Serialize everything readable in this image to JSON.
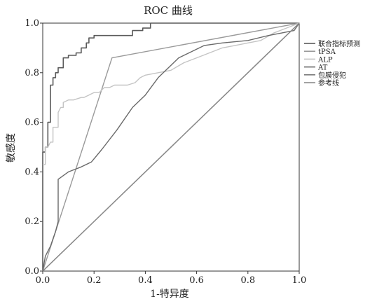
{
  "chart_data": {
    "type": "line",
    "title": "ROC 曲线",
    "xlabel": "1-特异度",
    "ylabel": "敏感度",
    "xlim": [
      0,
      1
    ],
    "ylim": [
      0,
      1
    ],
    "x_ticks": [
      "0.0",
      "0.2",
      "0.4",
      "0.6",
      "0.8",
      "1.0"
    ],
    "y_ticks": [
      "0.0",
      "0.2",
      "0.4",
      "0.6",
      "0.8",
      "1.0"
    ],
    "x_tick_values": [
      0,
      0.2,
      0.4,
      0.6,
      0.8,
      1.0
    ],
    "y_tick_values": [
      0,
      0.2,
      0.4,
      0.6,
      0.8,
      1.0
    ],
    "grid": false,
    "legend_position": "right",
    "series": [
      {
        "name": "联合指标预测",
        "color": "#5a5a5a",
        "x": [
          0,
          0,
          0.01,
          0.01,
          0.02,
          0.02,
          0.03,
          0.03,
          0.04,
          0.04,
          0.05,
          0.05,
          0.06,
          0.06,
          0.08,
          0.08,
          0.1,
          0.1,
          0.13,
          0.13,
          0.15,
          0.15,
          0.17,
          0.17,
          0.18,
          0.18,
          0.2,
          0.2,
          0.35,
          0.35,
          0.39,
          0.39,
          0.42,
          0.42,
          0.67,
          0.67,
          1.0
        ],
        "y": [
          0,
          0.48,
          0.48,
          0.5,
          0.5,
          0.6,
          0.6,
          0.75,
          0.75,
          0.78,
          0.78,
          0.8,
          0.8,
          0.82,
          0.82,
          0.86,
          0.86,
          0.87,
          0.87,
          0.88,
          0.88,
          0.9,
          0.9,
          0.92,
          0.92,
          0.94,
          0.94,
          0.95,
          0.95,
          0.97,
          0.97,
          0.98,
          0.98,
          1.0,
          1.0,
          1.0,
          1.0
        ]
      },
      {
        "name": "tPSA",
        "color": "#9a9a9a",
        "x": [
          0,
          0.27,
          1.0
        ],
        "y": [
          0,
          0.86,
          1.0
        ]
      },
      {
        "name": "ALP",
        "color": "#c4c4c4",
        "x": [
          0,
          0.01,
          0.01,
          0.02,
          0.03,
          0.04,
          0.04,
          0.06,
          0.06,
          0.07,
          0.08,
          0.08,
          0.1,
          0.12,
          0.15,
          0.16,
          0.18,
          0.2,
          0.22,
          0.24,
          0.26,
          0.28,
          0.3,
          0.33,
          0.36,
          0.38,
          0.4,
          0.45,
          0.5,
          0.55,
          0.6,
          0.65,
          0.7,
          0.75,
          0.8,
          0.85,
          0.9,
          0.95,
          1.0
        ],
        "y": [
          0.43,
          0.43,
          0.5,
          0.5,
          0.52,
          0.52,
          0.58,
          0.58,
          0.64,
          0.66,
          0.66,
          0.68,
          0.69,
          0.69,
          0.7,
          0.7,
          0.71,
          0.72,
          0.72,
          0.74,
          0.74,
          0.75,
          0.75,
          0.75,
          0.76,
          0.78,
          0.79,
          0.8,
          0.81,
          0.84,
          0.86,
          0.88,
          0.9,
          0.91,
          0.92,
          0.93,
          0.96,
          0.98,
          1.0
        ]
      },
      {
        "name": "AT",
        "color": "#6a6a6a",
        "x": [
          0,
          0.01,
          0.02,
          0.03,
          0.04,
          0.05,
          0.06,
          0.06,
          0.1,
          0.15,
          0.19,
          0.23,
          0.29,
          0.35,
          0.4,
          0.45,
          0.53,
          0.63,
          0.7,
          0.8,
          0.88,
          0.93,
          0.98,
          1.0
        ],
        "y": [
          0,
          0.06,
          0.08,
          0.1,
          0.13,
          0.16,
          0.2,
          0.37,
          0.4,
          0.42,
          0.44,
          0.49,
          0.57,
          0.66,
          0.71,
          0.78,
          0.86,
          0.91,
          0.92,
          0.93,
          0.95,
          0.96,
          0.97,
          1.0
        ]
      },
      {
        "name": "包膜侵犯",
        "color": "#7a7a7a",
        "x": [
          0,
          1.0
        ],
        "y": [
          0,
          1.0
        ]
      },
      {
        "name": "参考线",
        "color": "#8a8a8a",
        "x": [
          0,
          1.0
        ],
        "y": [
          0,
          1.0
        ]
      }
    ]
  }
}
